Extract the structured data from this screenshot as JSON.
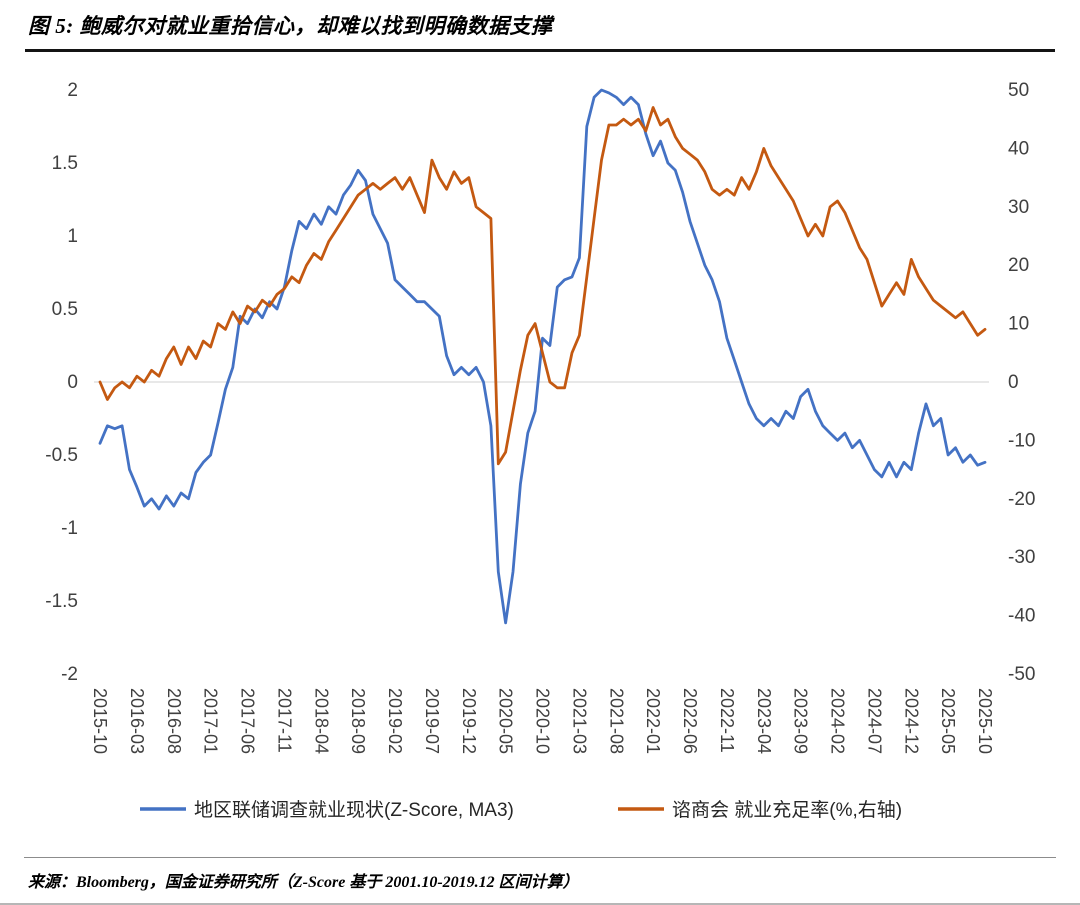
{
  "page": {
    "title": "图 5: 鲍威尔对就业重拾信心，却难以找到明确数据支撑",
    "source_note": "来源：Bloomberg，国金证券研究所（Z-Score 基于 2001.10-2019.12 区间计算）"
  },
  "colors": {
    "series1": "#4472C4",
    "series2": "#C45911",
    "zero_line": "#D9D9D9",
    "axis_text": "#404040",
    "legend_text": "#262626"
  },
  "chart_data": {
    "type": "line",
    "title": "",
    "xlabel": "",
    "ylabel_left": "Z-Score",
    "ylabel_right": "%",
    "grid": "zero-line-only",
    "legend_position": "bottom",
    "n_points": 121,
    "x_tick_interval": 5,
    "x_tick_labels": [
      "2015-10",
      "2016-03",
      "2016-08",
      "2017-01",
      "2017-06",
      "2017-11",
      "2018-04",
      "2018-09",
      "2019-02",
      "2019-07",
      "2019-12",
      "2020-05",
      "2020-10",
      "2021-03",
      "2021-08",
      "2022-01",
      "2022-06",
      "2022-11",
      "2023-04",
      "2023-09",
      "2024-02",
      "2024-07",
      "2024-12",
      "2025-05",
      "2025-10"
    ],
    "left_axis": {
      "min": -2,
      "max": 2,
      "ticks": [
        2,
        1.5,
        1,
        0.5,
        0,
        -0.5,
        -1,
        -1.5,
        -2
      ]
    },
    "right_axis": {
      "min": -50,
      "max": 50,
      "ticks": [
        50,
        40,
        30,
        20,
        10,
        0,
        -10,
        -20,
        -30,
        -40,
        -50
      ]
    },
    "series": [
      {
        "name": "地区联储调查就业现状(Z-Score, MA3)",
        "axis": "left",
        "color": "#4472C4",
        "values": [
          -0.42,
          -0.3,
          -0.32,
          -0.3,
          -0.6,
          -0.72,
          -0.85,
          -0.8,
          -0.87,
          -0.78,
          -0.85,
          -0.76,
          -0.8,
          -0.62,
          -0.55,
          -0.5,
          -0.28,
          -0.05,
          0.1,
          0.45,
          0.4,
          0.5,
          0.44,
          0.55,
          0.5,
          0.65,
          0.9,
          1.1,
          1.05,
          1.15,
          1.08,
          1.2,
          1.15,
          1.28,
          1.35,
          1.45,
          1.38,
          1.15,
          1.05,
          0.95,
          0.7,
          0.65,
          0.6,
          0.55,
          0.55,
          0.5,
          0.45,
          0.18,
          0.05,
          0.1,
          0.05,
          0.1,
          0.0,
          -0.3,
          -1.3,
          -1.65,
          -1.3,
          -0.7,
          -0.35,
          -0.2,
          0.3,
          0.25,
          0.65,
          0.7,
          0.72,
          0.85,
          1.75,
          1.95,
          2.0,
          1.98,
          1.95,
          1.9,
          1.95,
          1.9,
          1.7,
          1.55,
          1.65,
          1.5,
          1.45,
          1.3,
          1.1,
          0.95,
          0.8,
          0.7,
          0.55,
          0.3,
          0.15,
          0.0,
          -0.15,
          -0.25,
          -0.3,
          -0.25,
          -0.3,
          -0.2,
          -0.25,
          -0.1,
          -0.05,
          -0.2,
          -0.3,
          -0.35,
          -0.4,
          -0.35,
          -0.45,
          -0.4,
          -0.5,
          -0.6,
          -0.65,
          -0.55,
          -0.65,
          -0.55,
          -0.6,
          -0.35,
          -0.15,
          -0.3,
          -0.25,
          -0.5,
          -0.45,
          -0.55,
          -0.5,
          -0.57,
          -0.55
        ]
      },
      {
        "name": "谘商会 就业充足率(%,右轴)",
        "axis": "right",
        "color": "#C45911",
        "values": [
          0,
          -3,
          -1,
          0,
          -1,
          1,
          0,
          2,
          1,
          4,
          6,
          3,
          6,
          4,
          7,
          6,
          10,
          9,
          12,
          10,
          13,
          12,
          14,
          13,
          15,
          16,
          18,
          17,
          20,
          22,
          21,
          24,
          26,
          28,
          30,
          32,
          33,
          34,
          33,
          34,
          35,
          33,
          35,
          32,
          29,
          38,
          35,
          33,
          36,
          34,
          35,
          30,
          29,
          28,
          -14,
          -12,
          -5,
          2,
          8,
          10,
          5,
          0,
          -1,
          -1,
          5,
          8,
          18,
          28,
          38,
          44,
          44,
          45,
          44,
          45,
          43,
          47,
          44,
          45,
          42,
          40,
          39,
          38,
          36,
          33,
          32,
          33,
          32,
          35,
          33,
          36,
          40,
          37,
          35,
          33,
          31,
          28,
          25,
          27,
          25,
          30,
          31,
          29,
          26,
          23,
          21,
          17,
          13,
          15,
          17,
          15,
          21,
          18,
          16,
          14,
          13,
          12,
          11,
          12,
          10,
          8,
          9
        ]
      }
    ]
  }
}
